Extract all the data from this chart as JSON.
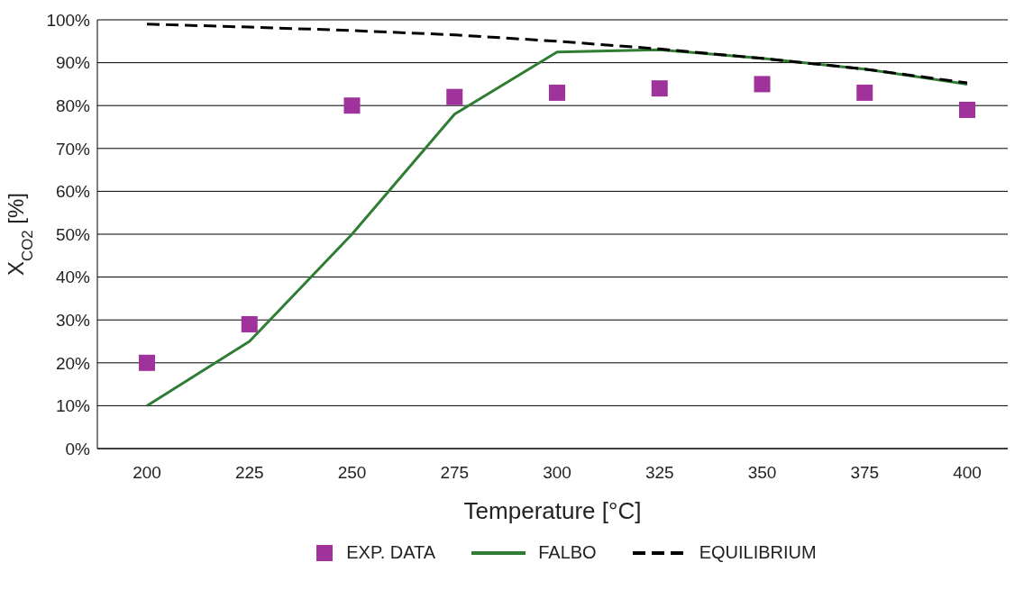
{
  "chart_data": {
    "type": "line",
    "xlabel": "Temperature [°C]",
    "ylabel": "X$_{CO2}$ [%]",
    "categories": [
      "200",
      "225",
      "250",
      "275",
      "300",
      "325",
      "350",
      "375",
      "400"
    ],
    "ylim": [
      0,
      100
    ],
    "yticks": [
      {
        "value": 0,
        "label": "0%"
      },
      {
        "value": 10,
        "label": "10%"
      },
      {
        "value": 20,
        "label": "20%"
      },
      {
        "value": 30,
        "label": "30%"
      },
      {
        "value": 40,
        "label": "40%"
      },
      {
        "value": 50,
        "label": "50%"
      },
      {
        "value": 60,
        "label": "60%"
      },
      {
        "value": 70,
        "label": "70%"
      },
      {
        "value": 80,
        "label": "80%"
      },
      {
        "value": 90,
        "label": "90%"
      },
      {
        "value": 100,
        "label": "100%"
      }
    ],
    "grid": "y",
    "legend": "bottom",
    "series": [
      {
        "name": "EXP. DATA",
        "type": "scatter",
        "marker": "square",
        "color": "#a0329b",
        "values": [
          20,
          29,
          80,
          82,
          83,
          84,
          85,
          83,
          79
        ]
      },
      {
        "name": "FALBO",
        "line_style": "solid",
        "color": "#2e7d32",
        "values": [
          10,
          25,
          50,
          78,
          92.5,
          93,
          91,
          88.5,
          85
        ]
      },
      {
        "name": "EQUILIBRIUM",
        "line_style": "dashed",
        "color": "#000000",
        "values": [
          99,
          98.3,
          97.5,
          96.5,
          95,
          93.2,
          91,
          88.5,
          85.3
        ]
      }
    ]
  }
}
